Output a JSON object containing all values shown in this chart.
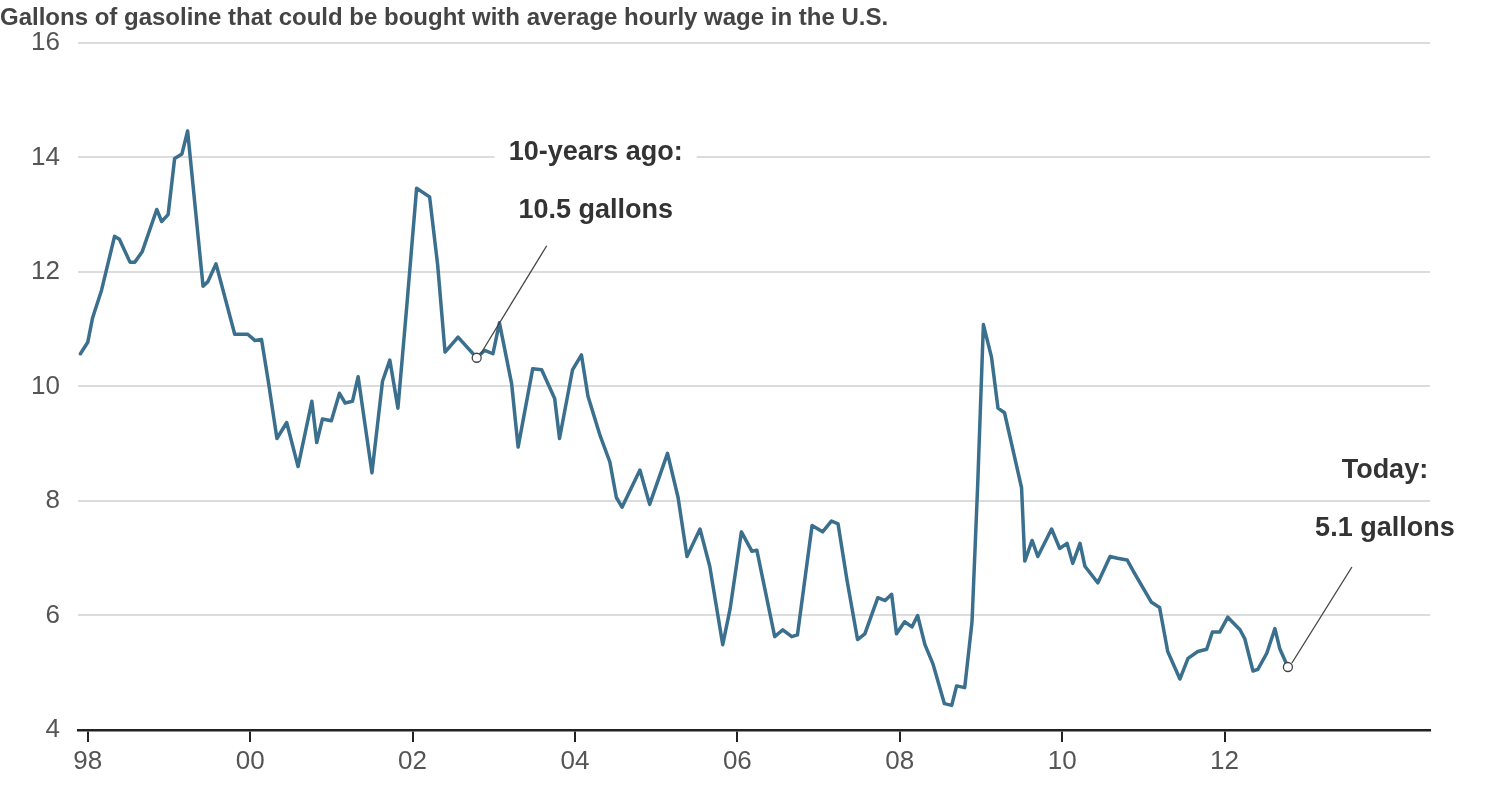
{
  "chart_data": {
    "type": "line",
    "title": "Gallons of gasoline that could be bought with average hourly wage in the U.S.",
    "x": [
      1997.91,
      1998.0,
      1998.06,
      1998.17,
      1998.33,
      1998.39,
      1998.52,
      1998.58,
      1998.67,
      1998.85,
      1998.91,
      1998.99,
      1999.07,
      1999.16,
      1999.23,
      1999.42,
      1999.48,
      1999.58,
      1999.81,
      1999.97,
      2000.06,
      2000.14,
      2000.22,
      2000.33,
      2000.45,
      2000.59,
      2000.76,
      2000.82,
      2000.89,
      2001.0,
      2001.1,
      2001.17,
      2001.26,
      2001.33,
      2001.5,
      2001.63,
      2001.72,
      2001.82,
      2001.93,
      2002.05,
      2002.21,
      2002.31,
      2002.4,
      2002.56,
      2002.79,
      2002.89,
      2002.99,
      2003.07,
      2003.22,
      2003.3,
      2003.48,
      2003.59,
      2003.75,
      2003.81,
      2003.97,
      2004.08,
      2004.16,
      2004.31,
      2004.43,
      2004.51,
      2004.58,
      2004.8,
      2004.92,
      2005.14,
      2005.27,
      2005.38,
      2005.54,
      2005.66,
      2005.82,
      2005.91,
      2006.05,
      2006.18,
      2006.24,
      2006.46,
      2006.56,
      2006.67,
      2006.74,
      2006.92,
      2007.05,
      2007.16,
      2007.24,
      2007.35,
      2007.48,
      2007.57,
      2007.73,
      2007.82,
      2007.9,
      2007.96,
      2008.06,
      2008.15,
      2008.22,
      2008.31,
      2008.41,
      2008.55,
      2008.64,
      2008.7,
      2008.8,
      2008.89,
      2008.96,
      2009.03,
      2009.13,
      2009.21,
      2009.29,
      2009.5,
      2009.54,
      2009.63,
      2009.7,
      2009.87,
      2009.97,
      2010.06,
      2010.13,
      2010.22,
      2010.28,
      2010.44,
      2010.59,
      2010.68,
      2010.8,
      2010.89,
      2011.1,
      2011.2,
      2011.3,
      2011.45,
      2011.55,
      2011.67,
      2011.78,
      2011.85,
      2011.94,
      2012.04,
      2012.19,
      2012.25,
      2012.35,
      2012.41,
      2012.52,
      2012.62,
      2012.68,
      2012.78
    ],
    "series": [
      {
        "color": "#3b6f8e",
        "values": [
          10.57,
          10.77,
          11.2,
          11.68,
          12.62,
          12.57,
          12.17,
          12.17,
          12.35,
          13.09,
          12.88,
          13.0,
          13.98,
          14.06,
          14.46,
          11.75,
          11.83,
          12.14,
          10.91,
          10.91,
          10.8,
          10.82,
          10.12,
          9.09,
          9.37,
          8.6,
          9.74,
          9.02,
          9.43,
          9.4,
          9.88,
          9.71,
          9.74,
          10.17,
          8.49,
          10.09,
          10.46,
          9.62,
          11.42,
          13.46,
          13.31,
          12.11,
          10.6,
          10.86,
          10.5,
          10.63,
          10.57,
          11.11,
          10.05,
          8.94,
          10.31,
          10.29,
          9.79,
          9.09,
          10.29,
          10.55,
          9.83,
          9.14,
          8.68,
          8.06,
          7.89,
          8.54,
          7.94,
          8.83,
          8.06,
          7.03,
          7.51,
          6.86,
          5.49,
          6.11,
          7.46,
          7.12,
          7.14,
          5.63,
          5.75,
          5.63,
          5.66,
          7.57,
          7.46,
          7.65,
          7.6,
          6.62,
          5.58,
          5.68,
          6.31,
          6.26,
          6.37,
          5.68,
          5.89,
          5.8,
          6.0,
          5.49,
          5.15,
          4.46,
          4.43,
          4.77,
          4.74,
          5.89,
          8.29,
          11.08,
          10.51,
          9.62,
          9.54,
          8.23,
          6.95,
          7.31,
          7.03,
          7.51,
          7.17,
          7.26,
          6.91,
          7.26,
          6.86,
          6.57,
          7.03,
          7.0,
          6.97,
          6.74,
          6.23,
          6.14,
          5.37,
          4.89,
          5.25,
          5.37,
          5.41,
          5.71,
          5.71,
          5.97,
          5.75,
          5.59,
          5.03,
          5.06,
          5.34,
          5.77,
          5.42,
          5.1
        ]
      }
    ],
    "xlim": [
      1997.88,
      2014.53
    ],
    "xticks": [
      {
        "value": 1998,
        "label": "98"
      },
      {
        "value": 2000,
        "label": "00"
      },
      {
        "value": 2002,
        "label": "02"
      },
      {
        "value": 2004,
        "label": "04"
      },
      {
        "value": 2006,
        "label": "06"
      },
      {
        "value": 2008,
        "label": "08"
      },
      {
        "value": 2010,
        "label": "10"
      },
      {
        "value": 2012,
        "label": "12"
      }
    ],
    "ylim": [
      4,
      16
    ],
    "yticks": [
      4,
      6,
      8,
      10,
      12,
      14,
      16
    ],
    "grid": "y",
    "legend": false,
    "marker": "none",
    "line_style": "solid",
    "annotations": [
      {
        "text": "10-years ago:\n10.5 gallons",
        "x": 2002.79,
        "y": 10.5
      },
      {
        "text": "Today:\n5.1 gallons",
        "x": 2012.78,
        "y": 5.1
      }
    ]
  }
}
